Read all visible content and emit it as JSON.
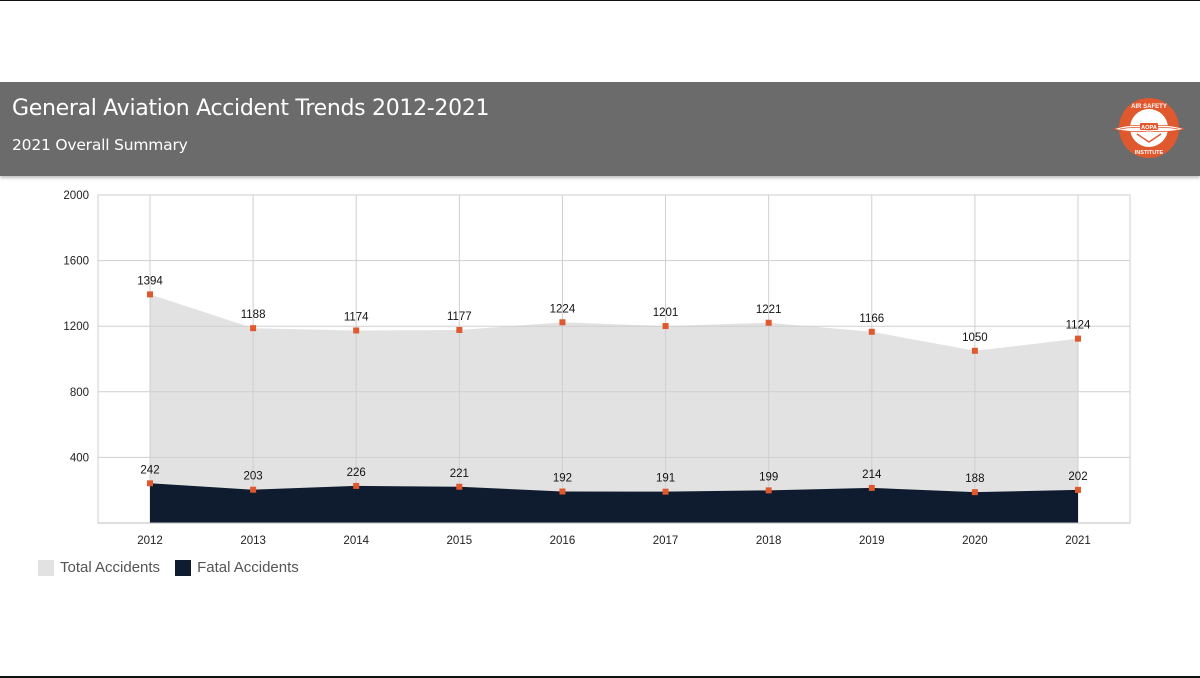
{
  "header": {
    "title": "General Aviation Accident Trends 2012-2021",
    "subtitle": "2021 Overall Summary",
    "logo": {
      "icon": "air-safety-institute-logo",
      "text_top": "AIR SAFETY",
      "text_bottom": "INSTITUTE",
      "badge": "AOPA"
    }
  },
  "colors": {
    "header_bg": "#6b6b6b",
    "total_fill": "#e2e2e2",
    "fatal_fill": "#0f1b2f",
    "marker": "#e0582e",
    "grid": "#cfcfcf",
    "logo_orange": "#e0582e"
  },
  "legend": [
    {
      "label": "Total Accidents",
      "color": "#e2e2e2"
    },
    {
      "label": "Fatal Accidents",
      "color": "#0f1b2f"
    }
  ],
  "chart_data": {
    "type": "area",
    "categories": [
      "2012",
      "2013",
      "2014",
      "2015",
      "2016",
      "2017",
      "2018",
      "2019",
      "2020",
      "2021"
    ],
    "series": [
      {
        "name": "Total Accidents",
        "values": [
          1394,
          1188,
          1174,
          1177,
          1224,
          1201,
          1221,
          1166,
          1050,
          1124
        ]
      },
      {
        "name": "Fatal Accidents",
        "values": [
          242,
          203,
          226,
          221,
          192,
          191,
          199,
          214,
          188,
          202
        ]
      }
    ],
    "yticks": [
      400,
      800,
      1200,
      1600,
      2000
    ],
    "ylim": [
      0,
      2000
    ],
    "grid": true,
    "data_labels": true,
    "legend_position": "bottom-left"
  }
}
